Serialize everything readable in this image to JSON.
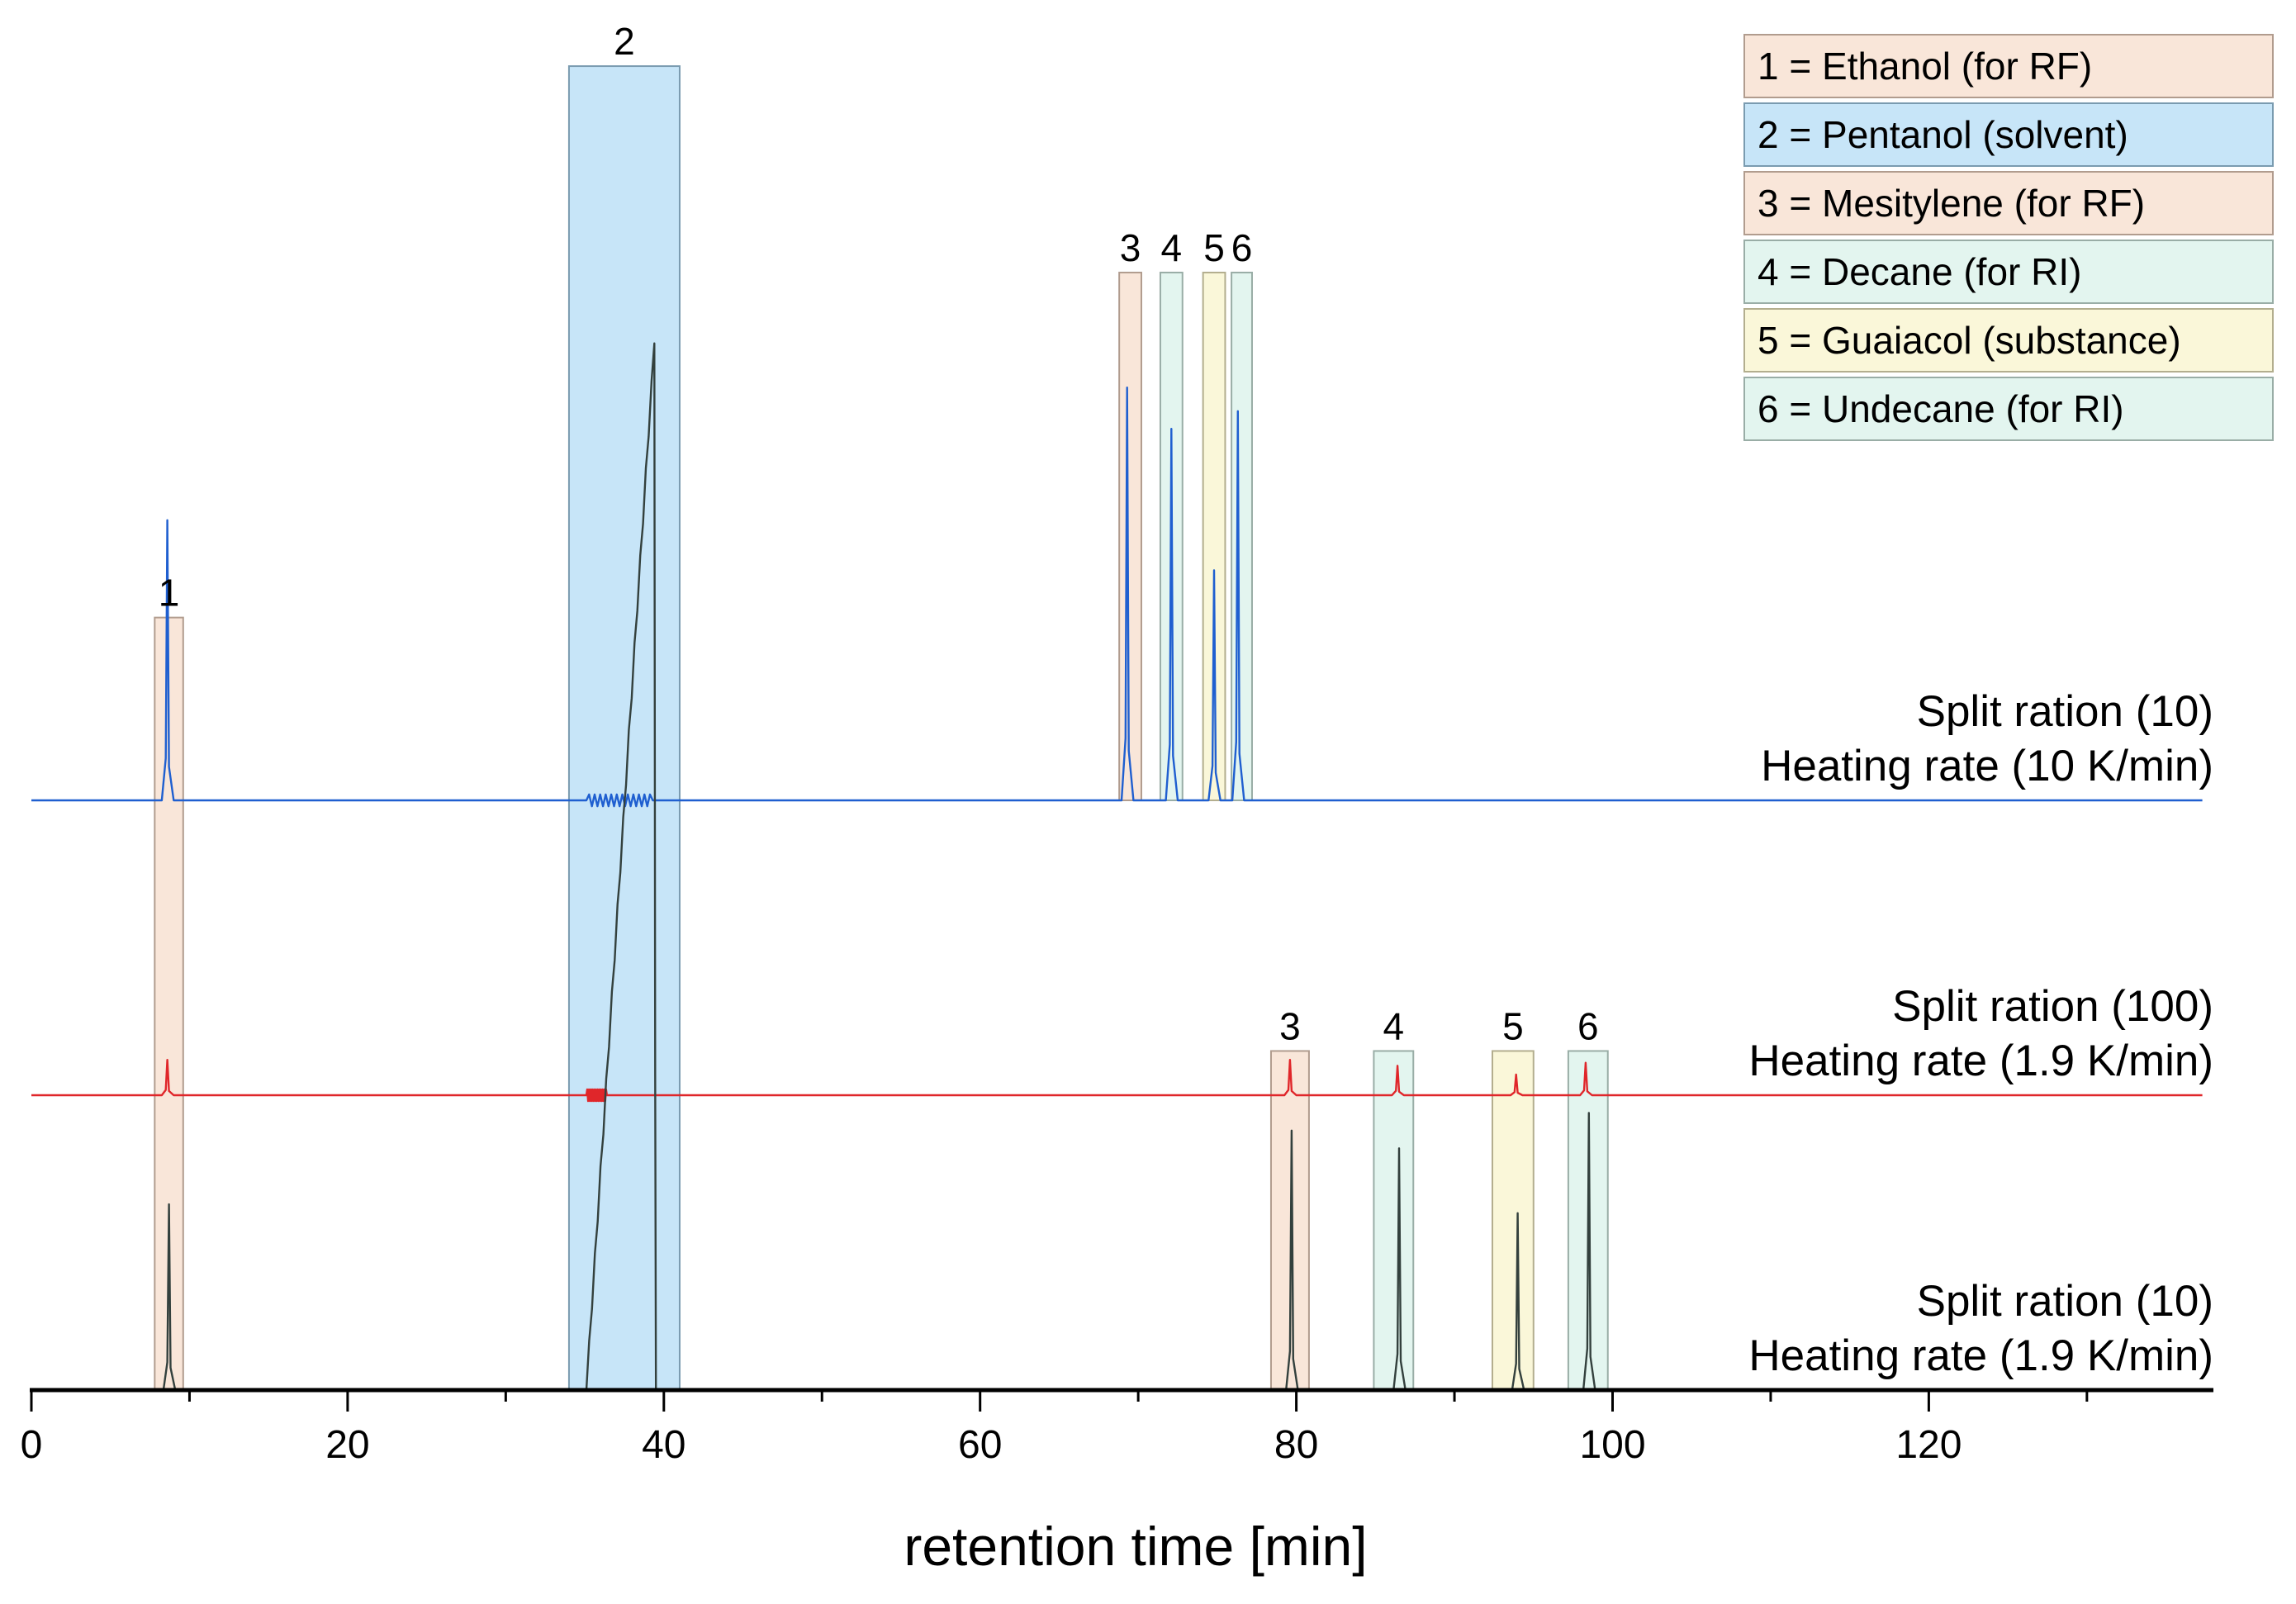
{
  "chart_data": {
    "type": "line",
    "title": "",
    "xlabel": "retention time [min]",
    "ylabel": "",
    "xlim": [
      0,
      138
    ],
    "x_ticks": [
      0,
      20,
      40,
      60,
      80,
      100,
      120
    ],
    "x_tick_labels": [
      "0",
      "20",
      "40",
      "60",
      "80",
      "100",
      "120"
    ],
    "colors": {
      "blue": "#1f5fd0",
      "red": "#e0262a",
      "black": "#33403d",
      "ethanol": "#f6d9c5",
      "pentanol": "#a9d7f5",
      "mesitylene": "#f6d9c5",
      "decane": "#d4f0e6",
      "guaiacol": "#f8f2c5",
      "undecane": "#d4f0e6"
    },
    "legend": [
      {
        "id": "1",
        "label": "1 = Ethanol (for RF)",
        "color": "ethanol"
      },
      {
        "id": "2",
        "label": "2 = Pentanol (solvent)",
        "color": "pentanol"
      },
      {
        "id": "3",
        "label": "3 = Mesitylene (for RF)",
        "color": "mesitylene"
      },
      {
        "id": "4",
        "label": "4 = Decane (for RI)",
        "color": "decane"
      },
      {
        "id": "5",
        "label": "5 = Guaiacol (substance)",
        "color": "guaiacol"
      },
      {
        "id": "6",
        "label": "6 = Undecane (for RI)",
        "color": "undecane"
      }
    ],
    "series": [
      {
        "name": "Split ration (10) Heating rate (10 K/min)",
        "label_line1": "Split ration (10)",
        "label_line2": "Heating rate (10 K/min)",
        "color": "blue",
        "offset": 2,
        "peaks": [
          {
            "compound": "1",
            "x": 8.6,
            "height": 0.95
          },
          {
            "compound": "3",
            "x": 69.3,
            "height": 1.4
          },
          {
            "compound": "4",
            "x": 72.1,
            "height": 1.26
          },
          {
            "compound": "5",
            "x": 74.8,
            "height": 0.78
          },
          {
            "compound": "6",
            "x": 76.3,
            "height": 1.32
          }
        ],
        "solvent": {
          "start": 35.1,
          "end": 39.3,
          "top": 2.0
        }
      },
      {
        "name": "Split ration (100) Heating rate (1.9 K/min)",
        "label_line1": "Split ration (100)",
        "label_line2": "Heating rate (1.9 K/min)",
        "color": "red",
        "offset": 1,
        "peaks": [
          {
            "compound": "1",
            "x": 8.6,
            "height": 0.12
          },
          {
            "compound": "3",
            "x": 79.6,
            "height": 0.12
          },
          {
            "compound": "4",
            "x": 86.4,
            "height": 0.1
          },
          {
            "compound": "5",
            "x": 93.9,
            "height": 0.07
          },
          {
            "compound": "6",
            "x": 98.3,
            "height": 0.11
          }
        ],
        "solvent": {
          "start": 35.1,
          "end": 36.4,
          "top": 1.0
        }
      },
      {
        "name": "Split ration (10) Heating rate (1.9 K/min)",
        "label_line1": "Split ration (10)",
        "label_line2": "Heating rate (1.9 K/min)",
        "color": "black",
        "offset": 0,
        "peaks": [
          {
            "compound": "1",
            "x": 8.7,
            "height": 0.63
          },
          {
            "compound": "3",
            "x": 79.7,
            "height": 0.88
          },
          {
            "compound": "4",
            "x": 86.5,
            "height": 0.82
          },
          {
            "compound": "5",
            "x": 94.0,
            "height": 0.6
          },
          {
            "compound": "6",
            "x": 98.5,
            "height": 0.94
          }
        ],
        "solvent": {
          "start": 35.1,
          "end": 39.4,
          "top": 3.55
        }
      }
    ],
    "regions": [
      {
        "compound": "1",
        "label": "1",
        "x0": 7.8,
        "x1": 9.6,
        "y0": 0,
        "y1": 2.62,
        "color": "ethanol",
        "label_pos": "top"
      },
      {
        "compound": "2",
        "label": "2",
        "x0": 34.0,
        "x1": 41.0,
        "y0": 0,
        "y1": 4.49,
        "color": "pentanol",
        "label_pos": "top"
      },
      {
        "compound": "3",
        "label": "3",
        "x0": 68.8,
        "x1": 70.2,
        "y0": 2.0,
        "y1": 3.79,
        "color": "mesitylene",
        "label_pos": "top"
      },
      {
        "compound": "4",
        "label": "4",
        "x0": 71.4,
        "x1": 72.8,
        "y0": 2.0,
        "y1": 3.79,
        "color": "decane",
        "label_pos": "top"
      },
      {
        "compound": "5",
        "label": "5",
        "x0": 74.1,
        "x1": 75.5,
        "y0": 2.0,
        "y1": 3.79,
        "color": "guaiacol",
        "label_pos": "top"
      },
      {
        "compound": "6",
        "label": "6",
        "x0": 75.9,
        "x1": 77.2,
        "y0": 2.0,
        "y1": 3.79,
        "color": "undecane",
        "label_pos": "top"
      },
      {
        "compound": "3",
        "label": "3",
        "x0": 78.4,
        "x1": 80.8,
        "y0": 0,
        "y1": 1.15,
        "color": "mesitylene",
        "label_pos": "top"
      },
      {
        "compound": "4",
        "label": "4",
        "x0": 84.9,
        "x1": 87.4,
        "y0": 0,
        "y1": 1.15,
        "color": "decane",
        "label_pos": "top"
      },
      {
        "compound": "5",
        "label": "5",
        "x0": 92.4,
        "x1": 95.0,
        "y0": 0,
        "y1": 1.15,
        "color": "guaiacol",
        "label_pos": "top"
      },
      {
        "compound": "6",
        "label": "6",
        "x0": 97.2,
        "x1": 99.7,
        "y0": 0,
        "y1": 1.15,
        "color": "undecane",
        "label_pos": "top"
      }
    ]
  }
}
